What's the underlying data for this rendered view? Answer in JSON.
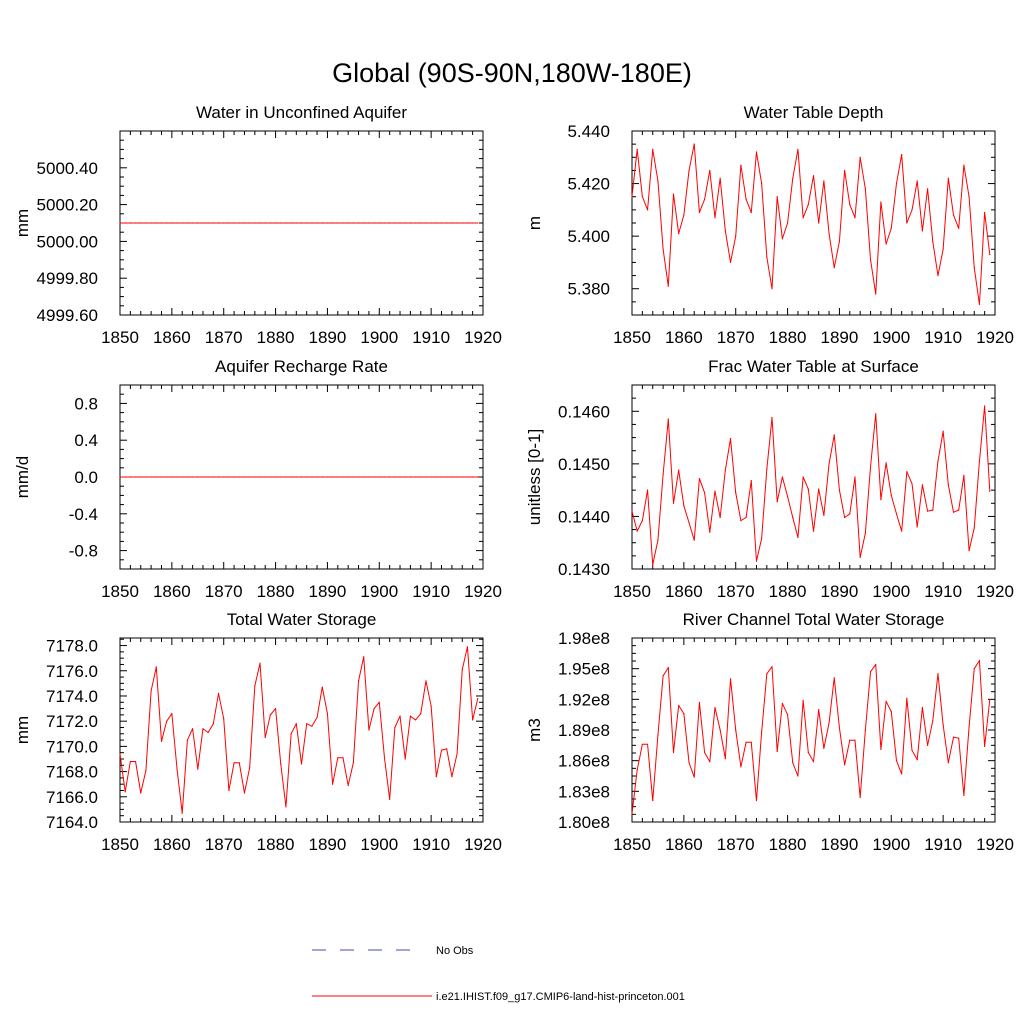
{
  "figure": {
    "title": "Global (90S-90N,180W-180E)",
    "line_color": "#ff0000",
    "obs_color": "#4a4ab8"
  },
  "legend": {
    "obs_label": "No Obs",
    "model_label": "i.e21.IHIST.f09_g17.CMIP6-land-hist-princeton.001"
  },
  "chart_data": [
    {
      "type": "line",
      "title": "Water in Unconfined Aquifer",
      "xlabel": "",
      "ylabel": "mm",
      "xlim": [
        1850,
        1920
      ],
      "ylim": [
        4999.6,
        5000.6
      ],
      "xticks": [
        1850,
        1860,
        1870,
        1880,
        1890,
        1900,
        1910,
        1920
      ],
      "xtick_labels": [
        "1850",
        "1860",
        "1870",
        "1880",
        "1890",
        "1900",
        "1910",
        "1920"
      ],
      "yticks": [
        4999.6,
        4999.8,
        5000.0,
        5000.2,
        5000.4
      ],
      "ytick_labels": [
        "4999.60",
        "4999.80",
        "5000.00",
        "5000.20",
        "5000.40"
      ],
      "series": [
        {
          "x_start": 1850,
          "x_step": 1,
          "values": [
            5000.1,
            5000.1,
            5000.1,
            5000.1,
            5000.1,
            5000.1,
            5000.1,
            5000.1,
            5000.1,
            5000.1,
            5000.1,
            5000.1,
            5000.1,
            5000.1,
            5000.1,
            5000.1,
            5000.1,
            5000.1,
            5000.1,
            5000.1,
            5000.1,
            5000.1,
            5000.1,
            5000.1,
            5000.1,
            5000.1,
            5000.1,
            5000.1,
            5000.1,
            5000.1,
            5000.1,
            5000.1,
            5000.1,
            5000.1,
            5000.1,
            5000.1,
            5000.1,
            5000.1,
            5000.1,
            5000.1,
            5000.1,
            5000.1,
            5000.1,
            5000.1,
            5000.1,
            5000.1,
            5000.1,
            5000.1,
            5000.1,
            5000.1,
            5000.1,
            5000.1,
            5000.1,
            5000.1,
            5000.1,
            5000.1,
            5000.1,
            5000.1,
            5000.1,
            5000.1,
            5000.1,
            5000.1,
            5000.1,
            5000.1,
            5000.1,
            5000.1,
            5000.1,
            5000.1,
            5000.1,
            5000.1
          ]
        }
      ]
    },
    {
      "type": "line",
      "title": "Water Table Depth",
      "xlabel": "",
      "ylabel": "m",
      "xlim": [
        1850,
        1920
      ],
      "ylim": [
        5.37,
        5.44
      ],
      "xticks": [
        1850,
        1860,
        1870,
        1880,
        1890,
        1900,
        1910,
        1920
      ],
      "xtick_labels": [
        "1850",
        "1860",
        "1870",
        "1880",
        "1890",
        "1900",
        "1910",
        "1920"
      ],
      "yticks": [
        5.38,
        5.4,
        5.42,
        5.44
      ],
      "ytick_labels": [
        "5.380",
        "5.400",
        "5.420",
        "5.440"
      ],
      "series": [
        {
          "x_start": 1850,
          "x_step": 1,
          "values": [
            5.415,
            5.433,
            5.415,
            5.41,
            5.433,
            5.421,
            5.395,
            5.381,
            5.416,
            5.401,
            5.408,
            5.425,
            5.435,
            5.409,
            5.414,
            5.425,
            5.407,
            5.422,
            5.402,
            5.39,
            5.4,
            5.427,
            5.414,
            5.409,
            5.432,
            5.42,
            5.392,
            5.38,
            5.415,
            5.399,
            5.405,
            5.422,
            5.433,
            5.407,
            5.412,
            5.423,
            5.405,
            5.421,
            5.401,
            5.388,
            5.398,
            5.425,
            5.412,
            5.407,
            5.43,
            5.418,
            5.391,
            5.378,
            5.413,
            5.397,
            5.403,
            5.42,
            5.431,
            5.405,
            5.41,
            5.421,
            5.402,
            5.418,
            5.398,
            5.385,
            5.395,
            5.422,
            5.408,
            5.403,
            5.427,
            5.415,
            5.388,
            5.374,
            5.409,
            5.393
          ]
        }
      ]
    },
    {
      "type": "line",
      "title": "Aquifer Recharge Rate",
      "xlabel": "",
      "ylabel": "mm/d",
      "xlim": [
        1850,
        1920
      ],
      "ylim": [
        -1.0,
        1.0
      ],
      "xticks": [
        1850,
        1860,
        1870,
        1880,
        1890,
        1900,
        1910,
        1920
      ],
      "xtick_labels": [
        "1850",
        "1860",
        "1870",
        "1880",
        "1890",
        "1900",
        "1910",
        "1920"
      ],
      "yticks": [
        -0.8,
        -0.4,
        0.0,
        0.4,
        0.8
      ],
      "ytick_labels": [
        "-0.8",
        "-0.4",
        "0.0",
        "0.4",
        "0.8"
      ],
      "series": [
        {
          "x_start": 1850,
          "x_step": 1,
          "values": [
            0,
            0,
            0,
            0,
            0,
            0,
            0,
            0,
            0,
            0,
            0,
            0,
            0,
            0,
            0,
            0,
            0,
            0,
            0,
            0,
            0,
            0,
            0,
            0,
            0,
            0,
            0,
            0,
            0,
            0,
            0,
            0,
            0,
            0,
            0,
            0,
            0,
            0,
            0,
            0,
            0,
            0,
            0,
            0,
            0,
            0,
            0,
            0,
            0,
            0,
            0,
            0,
            0,
            0,
            0,
            0,
            0,
            0,
            0,
            0,
            0,
            0,
            0,
            0,
            0,
            0,
            0,
            0,
            0,
            0
          ]
        }
      ]
    },
    {
      "type": "line",
      "title": "Frac Water Table at Surface",
      "xlabel": "",
      "ylabel": "unitless [0-1]",
      "xlim": [
        1850,
        1920
      ],
      "ylim": [
        0.143,
        0.1465
      ],
      "xticks": [
        1850,
        1860,
        1870,
        1880,
        1890,
        1900,
        1910,
        1920
      ],
      "xtick_labels": [
        "1850",
        "1860",
        "1870",
        "1880",
        "1890",
        "1900",
        "1910",
        "1920"
      ],
      "yticks": [
        0.143,
        0.144,
        0.145,
        0.146
      ],
      "ytick_labels": [
        "0.1430",
        "0.1440",
        "0.1450",
        "0.1460"
      ],
      "series": [
        {
          "x_start": 1850,
          "x_step": 1,
          "values": [
            0.1441,
            0.14372,
            0.14392,
            0.1445,
            0.14308,
            0.14355,
            0.1448,
            0.14585,
            0.14425,
            0.14488,
            0.1442,
            0.14388,
            0.14355,
            0.14472,
            0.14445,
            0.1437,
            0.14448,
            0.14398,
            0.14488,
            0.14548,
            0.14445,
            0.14392,
            0.14398,
            0.14468,
            0.14315,
            0.14358,
            0.1449,
            0.14588,
            0.14428,
            0.14475,
            0.14438,
            0.14398,
            0.1436,
            0.14475,
            0.14452,
            0.14372,
            0.14452,
            0.14402,
            0.145,
            0.14555,
            0.1445,
            0.14398,
            0.14405,
            0.14475,
            0.14322,
            0.14368,
            0.14495,
            0.14595,
            0.14432,
            0.14502,
            0.1444,
            0.14405,
            0.14372,
            0.14485,
            0.14462,
            0.1438,
            0.1446,
            0.1441,
            0.14412,
            0.14505,
            0.14562,
            0.1446,
            0.14408,
            0.14412,
            0.14478,
            0.14335,
            0.14378,
            0.14505,
            0.1461,
            0.14448
          ]
        }
      ]
    },
    {
      "type": "line",
      "title": "Total Water Storage",
      "xlabel": "",
      "ylabel": "mm",
      "xlim": [
        1850,
        1920
      ],
      "ylim": [
        7164.0,
        7178.6
      ],
      "xticks": [
        1850,
        1860,
        1870,
        1880,
        1890,
        1900,
        1910,
        1920
      ],
      "xtick_labels": [
        "1850",
        "1860",
        "1870",
        "1880",
        "1890",
        "1900",
        "1910",
        "1920"
      ],
      "yticks": [
        7164,
        7166,
        7168,
        7170,
        7172,
        7174,
        7176,
        7178
      ],
      "ytick_labels": [
        "7164.0",
        "7166.0",
        "7168.0",
        "7170.0",
        "7172.0",
        "7174.0",
        "7176.0",
        "7178.0"
      ],
      "series": [
        {
          "x_start": 1850,
          "x_step": 1,
          "values": [
            7169.4,
            7166.4,
            7168.8,
            7168.8,
            7166.3,
            7168.1,
            7174.4,
            7176.3,
            7170.4,
            7172.0,
            7172.6,
            7168.2,
            7164.7,
            7170.5,
            7171.4,
            7168.2,
            7171.4,
            7171.1,
            7171.8,
            7174.2,
            7172.2,
            7166.5,
            7168.7,
            7168.7,
            7166.3,
            7168.3,
            7174.8,
            7176.6,
            7170.7,
            7172.5,
            7173.0,
            7168.6,
            7165.2,
            7171.0,
            7171.8,
            7168.6,
            7171.8,
            7171.6,
            7172.3,
            7174.7,
            7172.6,
            7167.0,
            7169.1,
            7169.1,
            7166.9,
            7168.7,
            7175.2,
            7177.1,
            7171.3,
            7173.0,
            7173.5,
            7169.1,
            7165.8,
            7171.5,
            7172.4,
            7169.0,
            7172.4,
            7172.1,
            7172.6,
            7175.2,
            7173.2,
            7167.6,
            7169.7,
            7169.8,
            7167.6,
            7169.4,
            7176.1,
            7177.9,
            7172.1,
            7173.8
          ]
        }
      ]
    },
    {
      "type": "line",
      "title": "River Channel Total Water Storage",
      "xlabel": "",
      "ylabel": "m3",
      "xlim": [
        1850,
        1920
      ],
      "ylim": [
        180000000.0,
        198000000.0
      ],
      "xticks": [
        1850,
        1860,
        1870,
        1880,
        1890,
        1900,
        1910,
        1920
      ],
      "xtick_labels": [
        "1850",
        "1860",
        "1870",
        "1880",
        "1890",
        "1900",
        "1910",
        "1920"
      ],
      "yticks": [
        180000000.0,
        183000000.0,
        186000000.0,
        189000000.0,
        192000000.0,
        195000000.0,
        198000000.0
      ],
      "ytick_labels": [
        "1.80e8",
        "1.83e8",
        "1.86e8",
        "1.89e8",
        "1.92e8",
        "1.95e8",
        "1.98e8"
      ],
      "series": [
        {
          "x_start": 1850,
          "x_step": 1,
          "values": [
            180800000.0,
            185100000.0,
            187600000.0,
            187600000.0,
            182100000.0,
            188500000.0,
            194300000.0,
            195100000.0,
            186800000.0,
            191400000.0,
            190600000.0,
            185800000.0,
            184400000.0,
            191700000.0,
            186800000.0,
            185900000.0,
            191200000.0,
            189000000.0,
            186200000.0,
            194000000.0,
            189000000.0,
            185400000.0,
            187800000.0,
            187800000.0,
            182100000.0,
            188800000.0,
            194500000.0,
            195200000.0,
            186900000.0,
            191600000.0,
            190500000.0,
            185800000.0,
            184500000.0,
            191900000.0,
            186800000.0,
            185900000.0,
            191000000.0,
            187200000.0,
            189700000.0,
            194100000.0,
            189200000.0,
            185600000.0,
            188000000.0,
            188000000.0,
            182400000.0,
            189000000.0,
            194700000.0,
            195400000.0,
            187100000.0,
            191800000.0,
            190800000.0,
            186000000.0,
            184700000.0,
            192100000.0,
            187000000.0,
            186100000.0,
            191200000.0,
            187500000.0,
            189900000.0,
            194500000.0,
            189500000.0,
            185800000.0,
            188300000.0,
            188200000.0,
            182600000.0,
            189300000.0,
            195000000.0,
            195800000.0,
            187400000.0,
            192000000.0
          ]
        }
      ]
    }
  ]
}
